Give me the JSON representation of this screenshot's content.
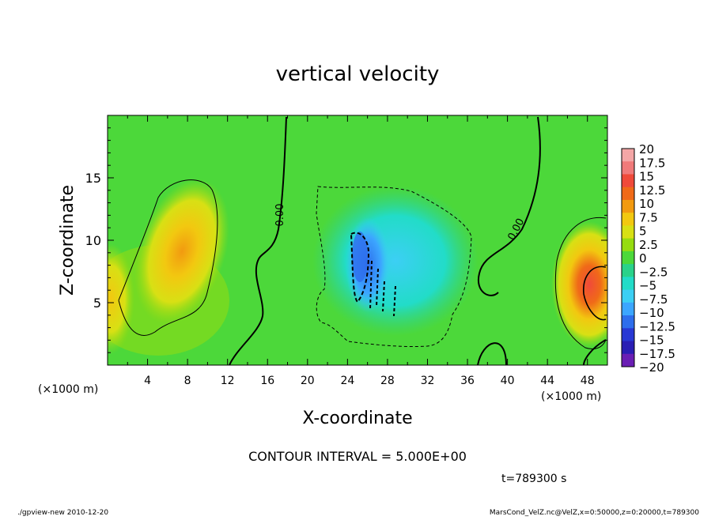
{
  "chart_data": {
    "type": "heatmap",
    "title": "vertical velocity",
    "xlabel": "X-coordinate",
    "ylabel": "Z-coordinate",
    "x_unit_label": "(×1000 m)",
    "y_unit_label": "(×1000 m)",
    "xlim": [
      0,
      50
    ],
    "ylim": [
      0,
      20
    ],
    "x_ticks": [
      "4",
      "8",
      "12",
      "16",
      "20",
      "24",
      "28",
      "32",
      "36",
      "40",
      "44",
      "48"
    ],
    "y_ticks": [
      "5",
      "10",
      "15"
    ],
    "contour_label": "0.00",
    "contour_interval_text": "CONTOUR INTERVAL = 5.000E+00",
    "time_text": "t=789300 s",
    "footer_left": "./gpview-new  2010-12-20",
    "footer_right": "MarsCond_VelZ.nc@VelZ,x=0:50000,z=0:20000,t=789300",
    "colorbar": {
      "labels": [
        "20",
        "17.5",
        "15",
        "12.5",
        "10",
        "7.5",
        "5",
        "2.5",
        "0",
        "-2.5",
        "-5",
        "-7.5",
        "-10",
        "-12.5",
        "-15",
        "-17.5",
        "-20"
      ],
      "colors": [
        "#f4a6a6",
        "#f07a7a",
        "#f04a3a",
        "#f06a18",
        "#f29a10",
        "#f2c810",
        "#d8e014",
        "#96dc10",
        "#4cd83a",
        "#2ad28a",
        "#22dcc8",
        "#3ccff4",
        "#3ca6ff",
        "#2e6eec",
        "#2838d4",
        "#2a1eb4",
        "#6a1eb4"
      ]
    },
    "features": [
      {
        "name": "updraft-west",
        "x": 8,
        "z": 10,
        "value": 9
      },
      {
        "name": "updraft-east",
        "x": 49,
        "z": 6,
        "value": 15
      },
      {
        "name": "updraft-left-edge",
        "x": 0.5,
        "z": 6,
        "value": 6
      },
      {
        "name": "downdraft-center",
        "x": 25,
        "z": 8,
        "value": -13
      },
      {
        "name": "downdraft-region",
        "x": 28,
        "z": 8,
        "value": -7
      }
    ]
  }
}
